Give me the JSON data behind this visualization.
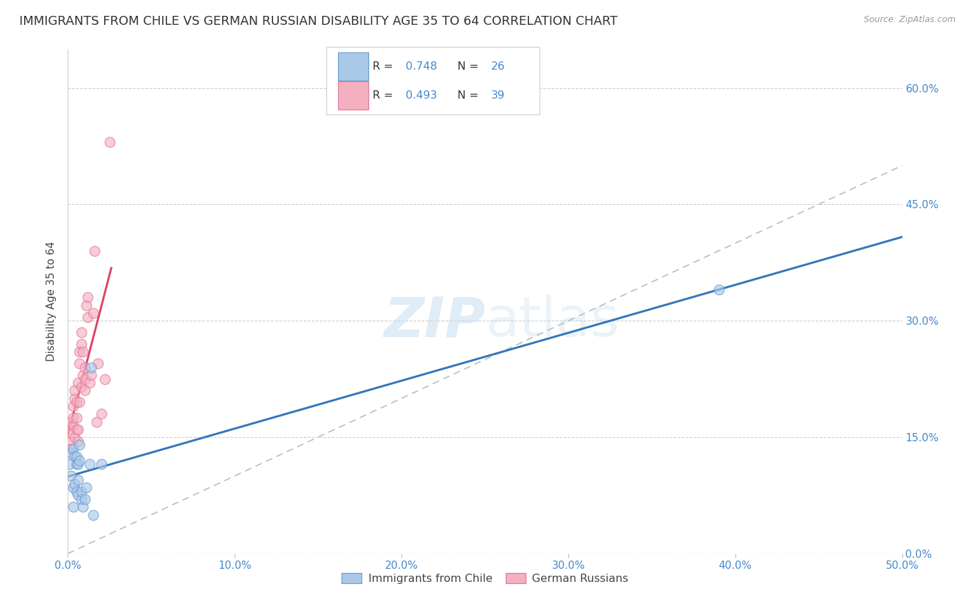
{
  "title": "IMMIGRANTS FROM CHILE VS GERMAN RUSSIAN DISABILITY AGE 35 TO 64 CORRELATION CHART",
  "source": "Source: ZipAtlas.com",
  "ylabel": "Disability Age 35 to 64",
  "xlim": [
    0.0,
    0.5
  ],
  "ylim": [
    0.0,
    0.65
  ],
  "R_blue": 0.748,
  "N_blue": 26,
  "R_pink": 0.493,
  "N_pink": 39,
  "legend_labels": [
    "Immigrants from Chile",
    "German Russians"
  ],
  "blue_color": "#aac8e8",
  "pink_color": "#f5b0c0",
  "blue_line_color": "#3377bb",
  "pink_line_color": "#dd4466",
  "blue_marker_edge": "#6699cc",
  "pink_marker_edge": "#dd7799",
  "watermark_zip": "ZIP",
  "watermark_atlas": "atlas",
  "grid_color": "#cccccc",
  "bg_color": "#ffffff",
  "title_fontsize": 13,
  "axis_fontsize": 11,
  "tick_fontsize": 11,
  "tick_color": "#4488cc",
  "marker_size": 110,
  "marker_alpha": 0.65,
  "blue_x": [
    0.001,
    0.002,
    0.002,
    0.003,
    0.003,
    0.003,
    0.004,
    0.004,
    0.005,
    0.005,
    0.005,
    0.006,
    0.006,
    0.006,
    0.007,
    0.007,
    0.008,
    0.008,
    0.009,
    0.01,
    0.011,
    0.013,
    0.014,
    0.015,
    0.02,
    0.39
  ],
  "blue_y": [
    0.115,
    0.1,
    0.13,
    0.135,
    0.085,
    0.06,
    0.125,
    0.09,
    0.125,
    0.115,
    0.08,
    0.095,
    0.115,
    0.075,
    0.14,
    0.12,
    0.07,
    0.08,
    0.06,
    0.07,
    0.085,
    0.115,
    0.24,
    0.05,
    0.115,
    0.34
  ],
  "pink_x": [
    0.001,
    0.001,
    0.002,
    0.002,
    0.003,
    0.003,
    0.003,
    0.004,
    0.004,
    0.004,
    0.005,
    0.005,
    0.005,
    0.006,
    0.006,
    0.006,
    0.007,
    0.007,
    0.007,
    0.008,
    0.008,
    0.008,
    0.009,
    0.009,
    0.01,
    0.01,
    0.01,
    0.011,
    0.012,
    0.012,
    0.013,
    0.014,
    0.015,
    0.016,
    0.017,
    0.018,
    0.02,
    0.022,
    0.025
  ],
  "pink_y": [
    0.145,
    0.155,
    0.17,
    0.135,
    0.165,
    0.175,
    0.19,
    0.15,
    0.2,
    0.21,
    0.16,
    0.175,
    0.195,
    0.145,
    0.16,
    0.22,
    0.245,
    0.26,
    0.195,
    0.27,
    0.285,
    0.215,
    0.23,
    0.26,
    0.225,
    0.24,
    0.21,
    0.32,
    0.33,
    0.305,
    0.22,
    0.23,
    0.31,
    0.39,
    0.17,
    0.245,
    0.18,
    0.225,
    0.53
  ],
  "x_ticks": [
    0.0,
    0.1,
    0.2,
    0.3,
    0.4,
    0.5
  ],
  "y_ticks": [
    0.0,
    0.15,
    0.3,
    0.45,
    0.6
  ],
  "y_tick_labels_right": [
    "0.0%",
    "15.0%",
    "30.0%",
    "45.0%",
    "60.0%"
  ]
}
